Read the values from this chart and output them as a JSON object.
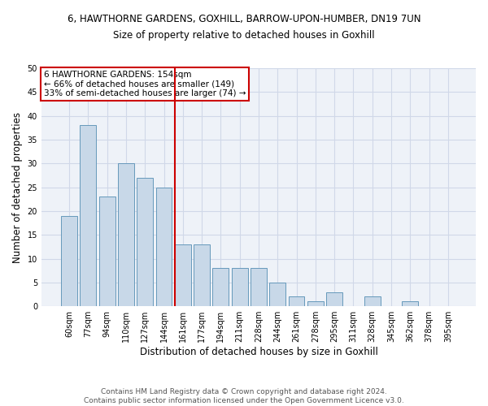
{
  "title1": "6, HAWTHORNE GARDENS, GOXHILL, BARROW-UPON-HUMBER, DN19 7UN",
  "title2": "Size of property relative to detached houses in Goxhill",
  "xlabel": "Distribution of detached houses by size in Goxhill",
  "ylabel": "Number of detached properties",
  "footer1": "Contains HM Land Registry data © Crown copyright and database right 2024.",
  "footer2": "Contains public sector information licensed under the Open Government Licence v3.0.",
  "annotation_line1": "6 HAWTHORNE GARDENS: 154sqm",
  "annotation_line2": "← 66% of detached houses are smaller (149)",
  "annotation_line3": "33% of semi-detached houses are larger (74) →",
  "bar_labels": [
    "60sqm",
    "77sqm",
    "94sqm",
    "110sqm",
    "127sqm",
    "144sqm",
    "161sqm",
    "177sqm",
    "194sqm",
    "211sqm",
    "228sqm",
    "244sqm",
    "261sqm",
    "278sqm",
    "295sqm",
    "311sqm",
    "328sqm",
    "345sqm",
    "362sqm",
    "378sqm",
    "395sqm"
  ],
  "bar_values": [
    19,
    38,
    23,
    30,
    27,
    25,
    13,
    13,
    8,
    8,
    8,
    5,
    2,
    1,
    3,
    0,
    2,
    0,
    1,
    0,
    0
  ],
  "bar_color": "#c8d8e8",
  "bar_edge_color": "#6699bb",
  "vline_x": 6,
  "vline_color": "#cc0000",
  "annotation_box_color": "#cc0000",
  "ylim": [
    0,
    50
  ],
  "yticks": [
    0,
    5,
    10,
    15,
    20,
    25,
    30,
    35,
    40,
    45,
    50
  ],
  "grid_color": "#d0d8e8",
  "bg_color": "#eef2f8",
  "title1_fontsize": 8.5,
  "title2_fontsize": 8.5,
  "ylabel_fontsize": 8.5,
  "xlabel_fontsize": 8.5,
  "tick_fontsize": 7.0,
  "footer_fontsize": 6.5,
  "annotation_fontsize": 7.5
}
